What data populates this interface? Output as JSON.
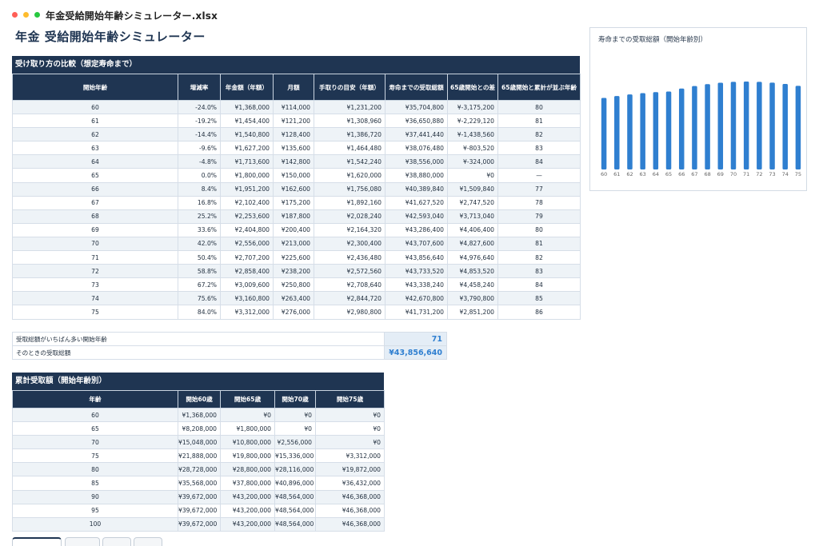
{
  "window": {
    "filename": "年金受給開始年齢シミュレーター.xlsx"
  },
  "page_title": "年金 受給開始年齢シミュレーター",
  "compare": {
    "header": "受け取り方の比較（想定寿命まで）",
    "columns": [
      "開始年齢",
      "増減率",
      "年金額（年額）",
      "月額",
      "手取りの目安（年額）",
      "寿命までの受取総額",
      "65歳開始との差",
      "65歳開始と累計が並ぶ年齢"
    ],
    "rows": [
      [
        "60",
        "-24.0%",
        "¥1,368,000",
        "¥114,000",
        "¥1,231,200",
        "¥35,704,800",
        "¥-3,175,200",
        "80"
      ],
      [
        "61",
        "-19.2%",
        "¥1,454,400",
        "¥121,200",
        "¥1,308,960",
        "¥36,650,880",
        "¥-2,229,120",
        "81"
      ],
      [
        "62",
        "-14.4%",
        "¥1,540,800",
        "¥128,400",
        "¥1,386,720",
        "¥37,441,440",
        "¥-1,438,560",
        "82"
      ],
      [
        "63",
        "-9.6%",
        "¥1,627,200",
        "¥135,600",
        "¥1,464,480",
        "¥38,076,480",
        "¥-803,520",
        "83"
      ],
      [
        "64",
        "-4.8%",
        "¥1,713,600",
        "¥142,800",
        "¥1,542,240",
        "¥38,556,000",
        "¥-324,000",
        "84"
      ],
      [
        "65",
        "0.0%",
        "¥1,800,000",
        "¥150,000",
        "¥1,620,000",
        "¥38,880,000",
        "¥0",
        "—"
      ],
      [
        "66",
        "8.4%",
        "¥1,951,200",
        "¥162,600",
        "¥1,756,080",
        "¥40,389,840",
        "¥1,509,840",
        "77"
      ],
      [
        "67",
        "16.8%",
        "¥2,102,400",
        "¥175,200",
        "¥1,892,160",
        "¥41,627,520",
        "¥2,747,520",
        "78"
      ],
      [
        "68",
        "25.2%",
        "¥2,253,600",
        "¥187,800",
        "¥2,028,240",
        "¥42,593,040",
        "¥3,713,040",
        "79"
      ],
      [
        "69",
        "33.6%",
        "¥2,404,800",
        "¥200,400",
        "¥2,164,320",
        "¥43,286,400",
        "¥4,406,400",
        "80"
      ],
      [
        "70",
        "42.0%",
        "¥2,556,000",
        "¥213,000",
        "¥2,300,400",
        "¥43,707,600",
        "¥4,827,600",
        "81"
      ],
      [
        "71",
        "50.4%",
        "¥2,707,200",
        "¥225,600",
        "¥2,436,480",
        "¥43,856,640",
        "¥4,976,640",
        "82"
      ],
      [
        "72",
        "58.8%",
        "¥2,858,400",
        "¥238,200",
        "¥2,572,560",
        "¥43,733,520",
        "¥4,853,520",
        "83"
      ],
      [
        "73",
        "67.2%",
        "¥3,009,600",
        "¥250,800",
        "¥2,708,640",
        "¥43,338,240",
        "¥4,458,240",
        "84"
      ],
      [
        "74",
        "75.6%",
        "¥3,160,800",
        "¥263,400",
        "¥2,844,720",
        "¥42,670,800",
        "¥3,790,800",
        "85"
      ],
      [
        "75",
        "84.0%",
        "¥3,312,000",
        "¥276,000",
        "¥2,980,800",
        "¥41,731,200",
        "¥2,851,200",
        "86"
      ]
    ]
  },
  "summary": {
    "best_age_label": "受取総額がいちばん多い開始年齢",
    "best_age_value": "71",
    "best_total_label": "そのときの受取総額",
    "best_total_value": "¥43,856,640"
  },
  "cumulative": {
    "header": "累計受取額（開始年齢別）",
    "columns": [
      "年齢",
      "開始60歳",
      "開始65歳",
      "開始70歳",
      "開始75歳"
    ],
    "rows": [
      [
        "60",
        "¥1,368,000",
        "¥0",
        "¥0",
        "¥0"
      ],
      [
        "65",
        "¥8,208,000",
        "¥1,800,000",
        "¥0",
        "¥0"
      ],
      [
        "70",
        "¥15,048,000",
        "¥10,800,000",
        "¥2,556,000",
        "¥0"
      ],
      [
        "75",
        "¥21,888,000",
        "¥19,800,000",
        "¥15,336,000",
        "¥3,312,000"
      ],
      [
        "80",
        "¥28,728,000",
        "¥28,800,000",
        "¥28,116,000",
        "¥19,872,000"
      ],
      [
        "85",
        "¥35,568,000",
        "¥37,800,000",
        "¥40,896,000",
        "¥36,432,000"
      ],
      [
        "90",
        "¥39,672,000",
        "¥43,200,000",
        "¥48,564,000",
        "¥46,368,000"
      ],
      [
        "95",
        "¥39,672,000",
        "¥43,200,000",
        "¥48,564,000",
        "¥46,368,000"
      ],
      [
        "100",
        "¥39,672,000",
        "¥43,200,000",
        "¥48,564,000",
        "¥46,368,000"
      ]
    ]
  },
  "chart_data": {
    "type": "bar",
    "title": "寿命までの受取総額（開始年齢別）",
    "categories": [
      "60",
      "61",
      "62",
      "63",
      "64",
      "65",
      "66",
      "67",
      "68",
      "69",
      "70",
      "71",
      "72",
      "73",
      "74",
      "75"
    ],
    "values": [
      35704800,
      36650880,
      37441440,
      38076480,
      38556000,
      38880000,
      40389840,
      41627520,
      42593040,
      43286400,
      43707600,
      43856640,
      43733520,
      43338240,
      42670800,
      41731200
    ],
    "ylim": [
      0,
      46000000
    ],
    "bar_color": "#2f7fd0",
    "grid": false,
    "legend": "none"
  },
  "colors": {
    "header": "#1f3552",
    "accent": "#2f7fd0",
    "stripe": "#eef3f7"
  }
}
